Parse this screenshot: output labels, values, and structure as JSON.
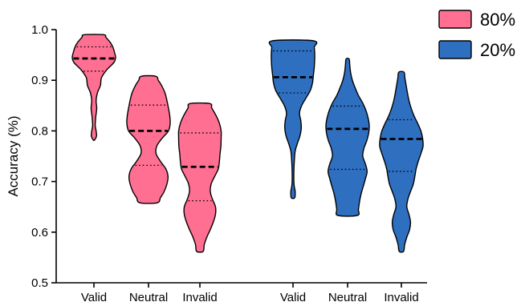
{
  "chart_data": {
    "type": "violin",
    "title": "",
    "xlabel": "",
    "ylabel": "Accuracy (%)",
    "ylim": [
      0.5,
      1.0
    ],
    "yticks": [
      "0.5",
      "0.6",
      "0.7",
      "0.8",
      "0.9",
      "1.0"
    ],
    "categories": [
      "Valid",
      "Neutral",
      "Invalid"
    ],
    "grid": false,
    "legend": "top-right",
    "series": [
      {
        "name": "80%",
        "color": "#ff6f91",
        "violins": [
          {
            "category": "Valid",
            "min": 0.782,
            "max": 0.99,
            "median": 0.943,
            "q1": 0.918,
            "q3": 0.966,
            "density": [
              [
                0.782,
                0.03
              ],
              [
                0.79,
                0.12
              ],
              [
                0.8,
                0.1
              ],
              [
                0.81,
                0.06
              ],
              [
                0.82,
                0.07
              ],
              [
                0.83,
                0.09
              ],
              [
                0.845,
                0.13
              ],
              [
                0.86,
                0.1
              ],
              [
                0.875,
                0.16
              ],
              [
                0.89,
                0.3
              ],
              [
                0.905,
                0.35
              ],
              [
                0.92,
                0.58
              ],
              [
                0.935,
                0.92
              ],
              [
                0.945,
                1.0
              ],
              [
                0.955,
                0.95
              ],
              [
                0.965,
                0.88
              ],
              [
                0.975,
                0.75
              ],
              [
                0.985,
                0.55
              ],
              [
                0.99,
                0.45
              ]
            ]
          },
          {
            "category": "Neutral",
            "min": 0.658,
            "max": 0.908,
            "median": 0.8,
            "q1": 0.732,
            "q3": 0.851,
            "density": [
              [
                0.658,
                0.4
              ],
              [
                0.668,
                0.55
              ],
              [
                0.68,
                0.72
              ],
              [
                0.695,
                0.85
              ],
              [
                0.71,
                0.9
              ],
              [
                0.725,
                0.8
              ],
              [
                0.74,
                0.55
              ],
              [
                0.755,
                0.35
              ],
              [
                0.77,
                0.38
              ],
              [
                0.785,
                0.62
              ],
              [
                0.8,
                0.92
              ],
              [
                0.815,
                1.0
              ],
              [
                0.83,
                0.98
              ],
              [
                0.845,
                0.92
              ],
              [
                0.86,
                0.85
              ],
              [
                0.875,
                0.76
              ],
              [
                0.89,
                0.6
              ],
              [
                0.9,
                0.45
              ],
              [
                0.908,
                0.33
              ]
            ]
          },
          {
            "category": "Invalid",
            "min": 0.562,
            "max": 0.854,
            "median": 0.729,
            "q1": 0.662,
            "q3": 0.796,
            "density": [
              [
                0.562,
                0.15
              ],
              [
                0.575,
                0.2
              ],
              [
                0.59,
                0.32
              ],
              [
                0.605,
                0.48
              ],
              [
                0.62,
                0.62
              ],
              [
                0.635,
                0.72
              ],
              [
                0.65,
                0.72
              ],
              [
                0.665,
                0.58
              ],
              [
                0.68,
                0.48
              ],
              [
                0.695,
                0.52
              ],
              [
                0.71,
                0.68
              ],
              [
                0.725,
                0.85
              ],
              [
                0.74,
                0.9
              ],
              [
                0.755,
                0.93
              ],
              [
                0.77,
                0.97
              ],
              [
                0.785,
                0.98
              ],
              [
                0.8,
                0.98
              ],
              [
                0.815,
                0.9
              ],
              [
                0.83,
                0.75
              ],
              [
                0.845,
                0.55
              ],
              [
                0.854,
                0.45
              ]
            ]
          }
        ]
      },
      {
        "name": "20%",
        "color": "#2f6fc0",
        "violins": [
          {
            "category": "Valid",
            "min": 0.668,
            "max": 0.978,
            "median": 0.906,
            "q1": 0.875,
            "q3": 0.958,
            "density": [
              [
                0.668,
                0.08
              ],
              [
                0.68,
                0.1
              ],
              [
                0.69,
                0.06
              ],
              [
                0.7,
                0.04
              ],
              [
                0.72,
                0.04
              ],
              [
                0.74,
                0.06
              ],
              [
                0.76,
                0.1
              ],
              [
                0.775,
                0.2
              ],
              [
                0.79,
                0.32
              ],
              [
                0.805,
                0.38
              ],
              [
                0.82,
                0.36
              ],
              [
                0.835,
                0.3
              ],
              [
                0.85,
                0.4
              ],
              [
                0.865,
                0.6
              ],
              [
                0.88,
                0.8
              ],
              [
                0.895,
                0.9
              ],
              [
                0.91,
                0.94
              ],
              [
                0.925,
                0.98
              ],
              [
                0.94,
                1.0
              ],
              [
                0.955,
                1.0
              ],
              [
                0.965,
                0.98
              ],
              [
                0.978,
                0.95
              ]
            ]
          },
          {
            "category": "Neutral",
            "min": 0.633,
            "max": 0.942,
            "median": 0.804,
            "q1": 0.724,
            "q3": 0.849,
            "density": [
              [
                0.633,
                0.45
              ],
              [
                0.645,
                0.5
              ],
              [
                0.66,
                0.55
              ],
              [
                0.675,
                0.62
              ],
              [
                0.69,
                0.72
              ],
              [
                0.705,
                0.82
              ],
              [
                0.72,
                0.9
              ],
              [
                0.735,
                0.82
              ],
              [
                0.75,
                0.7
              ],
              [
                0.765,
                0.75
              ],
              [
                0.78,
                0.88
              ],
              [
                0.795,
                0.97
              ],
              [
                0.81,
                1.0
              ],
              [
                0.825,
                0.95
              ],
              [
                0.84,
                0.85
              ],
              [
                0.855,
                0.7
              ],
              [
                0.87,
                0.5
              ],
              [
                0.885,
                0.35
              ],
              [
                0.9,
                0.22
              ],
              [
                0.915,
                0.14
              ],
              [
                0.93,
                0.1
              ],
              [
                0.942,
                0.07
              ]
            ]
          },
          {
            "category": "Invalid",
            "min": 0.562,
            "max": 0.916,
            "median": 0.784,
            "q1": 0.72,
            "q3": 0.822,
            "density": [
              [
                0.562,
                0.1
              ],
              [
                0.575,
                0.15
              ],
              [
                0.59,
                0.25
              ],
              [
                0.605,
                0.38
              ],
              [
                0.62,
                0.42
              ],
              [
                0.635,
                0.35
              ],
              [
                0.65,
                0.25
              ],
              [
                0.665,
                0.3
              ],
              [
                0.68,
                0.42
              ],
              [
                0.695,
                0.55
              ],
              [
                0.71,
                0.62
              ],
              [
                0.725,
                0.68
              ],
              [
                0.74,
                0.78
              ],
              [
                0.755,
                0.9
              ],
              [
                0.77,
                1.0
              ],
              [
                0.785,
                0.98
              ],
              [
                0.8,
                0.9
              ],
              [
                0.815,
                0.75
              ],
              [
                0.83,
                0.58
              ],
              [
                0.845,
                0.45
              ],
              [
                0.86,
                0.35
              ],
              [
                0.875,
                0.28
              ],
              [
                0.89,
                0.22
              ],
              [
                0.905,
                0.16
              ],
              [
                0.916,
                0.12
              ]
            ]
          }
        ]
      }
    ]
  }
}
